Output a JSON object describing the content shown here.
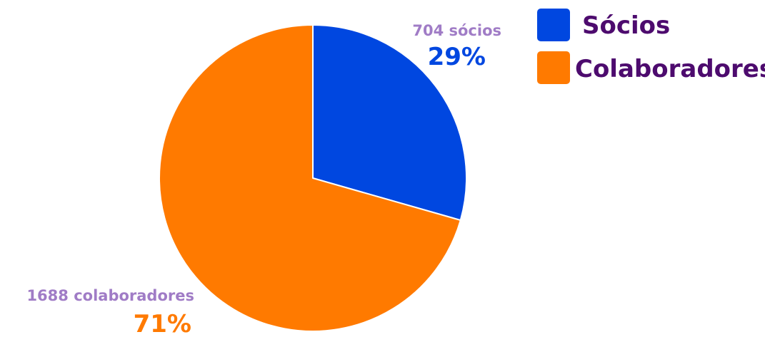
{
  "chart_data": {
    "type": "pie",
    "title": "",
    "slices": [
      {
        "name": "Sócios",
        "value": 704,
        "count_label": "704 sócios",
        "percent_label": "29%",
        "color": "#0047e0"
      },
      {
        "name": "Colaboradores",
        "value": 1688,
        "count_label": "1688 colaboradores",
        "percent_label": "71%",
        "color": "#ff7a00"
      }
    ],
    "legend": {
      "position": "top-right",
      "text_color": "#4d0b6e"
    },
    "count_label_color": "#a07cc6"
  }
}
